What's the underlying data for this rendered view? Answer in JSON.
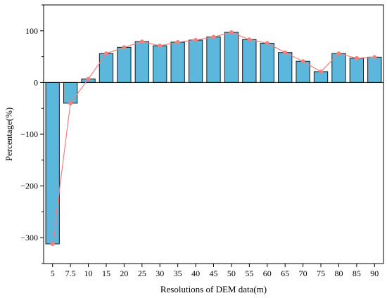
{
  "chart_data": {
    "type": "bar",
    "title": "",
    "xlabel": "Resolutions of DEM data(m)",
    "ylabel": "Percentage(%)",
    "ylim": [
      -350,
      150
    ],
    "yticks": [
      -300,
      -200,
      -100,
      0,
      100
    ],
    "ytick_labels": [
      "−300",
      "−200",
      "−100",
      "0",
      "100"
    ],
    "categories": [
      "5",
      "7.5",
      "10",
      "15",
      "20",
      "25",
      "30",
      "35",
      "40",
      "45",
      "50",
      "55",
      "60",
      "65",
      "70",
      "75",
      "80",
      "85",
      "90"
    ],
    "values": [
      -312,
      -40,
      7,
      56,
      68,
      79,
      71,
      78,
      82,
      88,
      97,
      83,
      76,
      58,
      41,
      21,
      56,
      47,
      49
    ],
    "overlay_line": true,
    "grid": false,
    "legend": "none",
    "colors": {
      "bar_fill": "#5BB8DC",
      "bar_stroke": "#1a1a1a",
      "line": "#F08080",
      "marker": "#F08080"
    }
  }
}
